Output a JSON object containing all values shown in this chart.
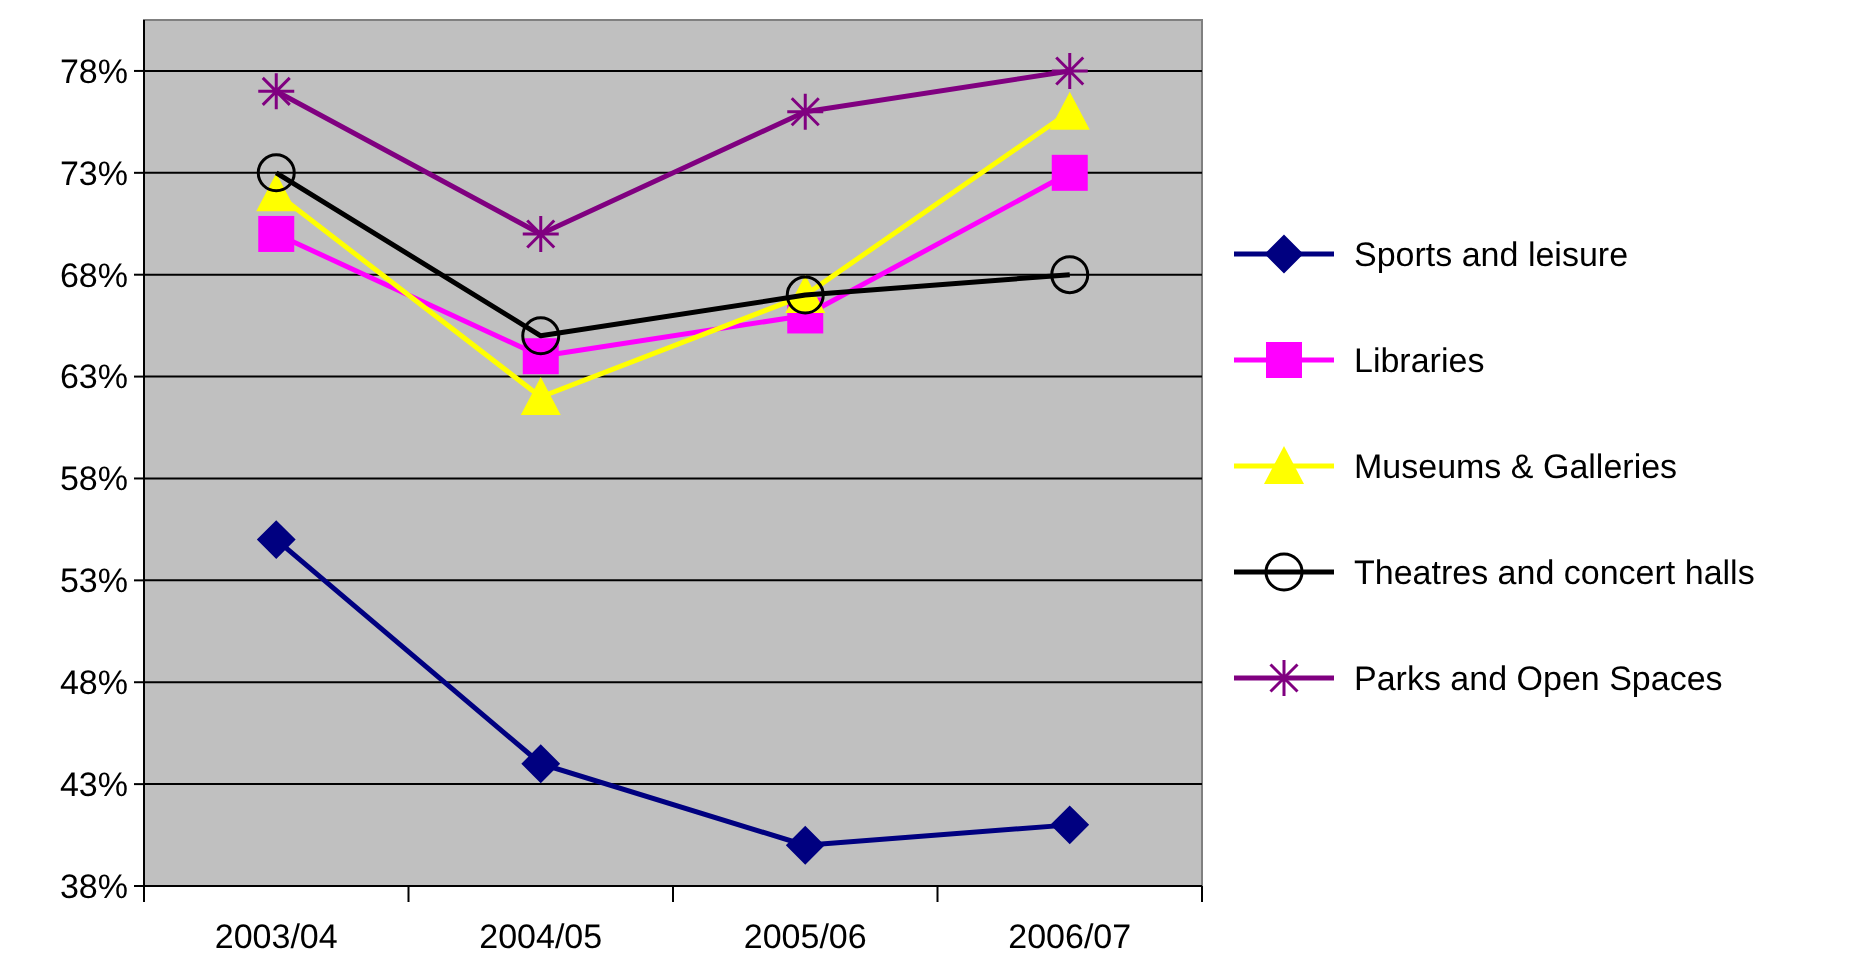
{
  "chart_data": {
    "type": "line",
    "categories": [
      "2003/04",
      "2004/05",
      "2005/06",
      "2006/07"
    ],
    "ylim": [
      38,
      80.5
    ],
    "yticks": [
      {
        "value": 38,
        "label": "38%"
      },
      {
        "value": 43,
        "label": "43%"
      },
      {
        "value": 48,
        "label": "48%"
      },
      {
        "value": 53,
        "label": "53%"
      },
      {
        "value": 58,
        "label": "58%"
      },
      {
        "value": 63,
        "label": "63%"
      },
      {
        "value": 68,
        "label": "68%"
      },
      {
        "value": 73,
        "label": "73%"
      },
      {
        "value": 78,
        "label": "78%"
      }
    ],
    "grid": "y",
    "legend": "right",
    "series": [
      {
        "name": "Sports and leisure",
        "color": "#000080",
        "marker": "diamond",
        "values": [
          55,
          44,
          40,
          41
        ]
      },
      {
        "name": "Libraries",
        "color": "#ff00ff",
        "marker": "square",
        "values": [
          70,
          64,
          66,
          73
        ]
      },
      {
        "name": "Museums & Galleries",
        "color": "#ffff00",
        "marker": "triangle",
        "values": [
          72,
          62,
          67,
          76
        ]
      },
      {
        "name": "Theatres and concert halls",
        "color": "#000000",
        "marker": "circle",
        "values": [
          73,
          65,
          67,
          68
        ]
      },
      {
        "name": "Parks and Open Spaces",
        "color": "#800080",
        "marker": "cross",
        "values": [
          77,
          70,
          76,
          78
        ]
      }
    ]
  }
}
